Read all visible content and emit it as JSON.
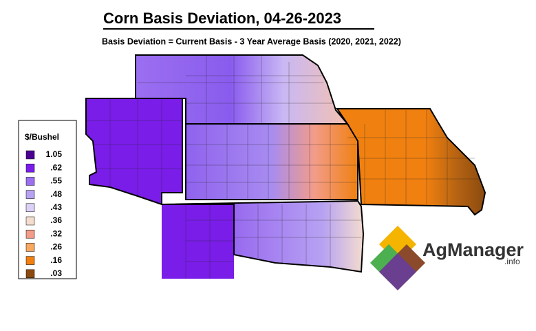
{
  "header": {
    "title": "Corn Basis Deviation, 04-26-2023",
    "subtitle": "Basis Deviation = Current Basis - 3 Year Average Basis (2020, 2021, 2022)"
  },
  "legend": {
    "title": "$/Bushel",
    "items": [
      {
        "label": "1.05",
        "color": "#4b0092"
      },
      {
        "label": ".62",
        "color": "#7a1de8"
      },
      {
        "label": ".55",
        "color": "#9b6ff0"
      },
      {
        "label": ".48",
        "color": "#b7a2f2"
      },
      {
        "label": ".43",
        "color": "#ddd0f7"
      },
      {
        "label": ".36",
        "color": "#f4dccf"
      },
      {
        "label": ".32",
        "color": "#f39c88"
      },
      {
        "label": ".26",
        "color": "#f8a860"
      },
      {
        "label": ".16",
        "color": "#f08010"
      },
      {
        "label": ".03",
        "color": "#8a4a10"
      }
    ]
  },
  "logo": {
    "name": "AgManager",
    "suffix": ".info"
  }
}
